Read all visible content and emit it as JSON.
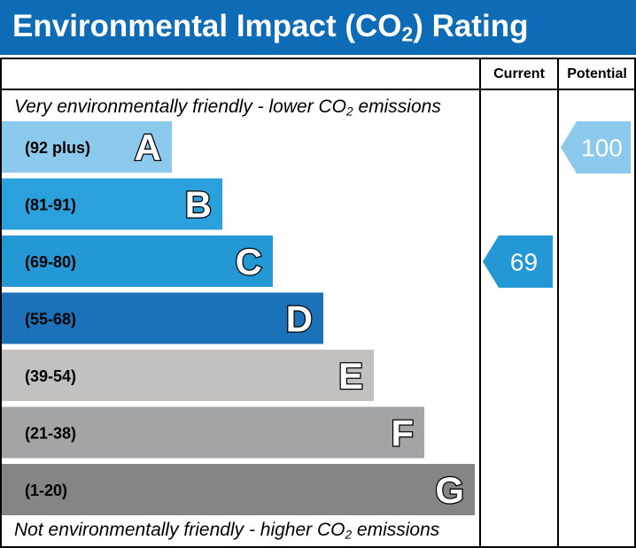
{
  "header": {
    "title_pre": "Environmental Impact (CO",
    "title_sub": "2",
    "title_post": ") Rating",
    "background": "#0d6cb5"
  },
  "columns": {
    "current": "Current",
    "potential": "Potential"
  },
  "notes": {
    "top_pre": "Very environmentally friendly - lower CO",
    "top_sub": "2",
    "top_post": " emissions",
    "bottom_pre": "Not environmentally friendly - higher CO",
    "bottom_sub": "2",
    "bottom_post": " emissions"
  },
  "chart_data": {
    "type": "bar",
    "categories": [
      "A",
      "B",
      "C",
      "D",
      "E",
      "F",
      "G"
    ],
    "bands": [
      {
        "letter": "A",
        "range": "(92 plus)",
        "min": 92,
        "max": 100,
        "color": "#8ccaed"
      },
      {
        "letter": "B",
        "range": "(81-91)",
        "min": 81,
        "max": 91,
        "color": "#2aa0dc"
      },
      {
        "letter": "C",
        "range": "(69-80)",
        "min": 69,
        "max": 80,
        "color": "#2398d5"
      },
      {
        "letter": "D",
        "range": "(55-68)",
        "min": 55,
        "max": 68,
        "color": "#1b72b8"
      },
      {
        "letter": "E",
        "range": "(39-54)",
        "min": 39,
        "max": 54,
        "color": "#c2c1bf"
      },
      {
        "letter": "F",
        "range": "(21-38)",
        "min": 21,
        "max": 38,
        "color": "#a3a4a6"
      },
      {
        "letter": "G",
        "range": "(1-20)",
        "min": 1,
        "max": 20,
        "color": "#858585"
      }
    ],
    "current": {
      "value": 69,
      "band": "C",
      "color": "#2398d5"
    },
    "potential": {
      "value": 100,
      "band": "A",
      "color": "#8ccaed"
    }
  }
}
